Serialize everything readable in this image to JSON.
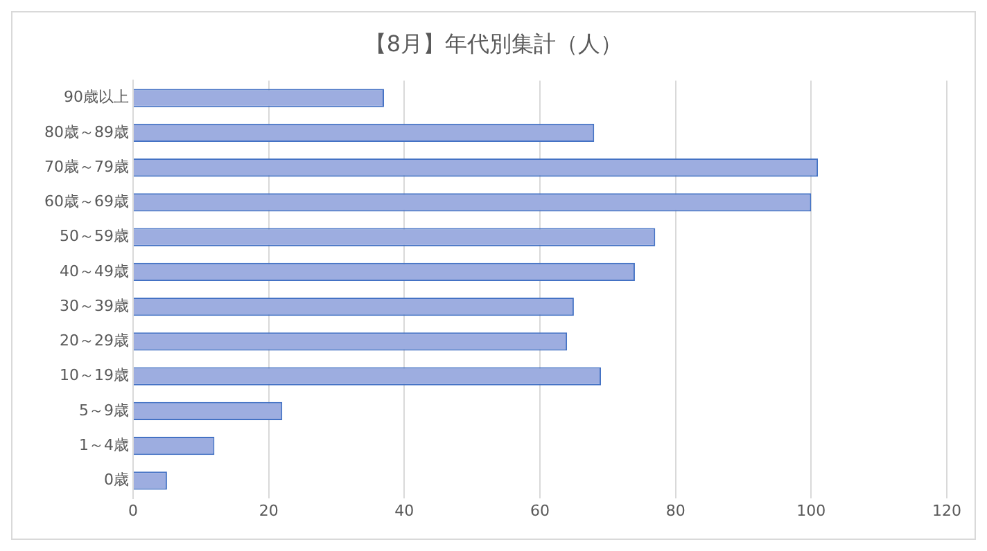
{
  "chart_data": {
    "type": "bar",
    "orientation": "horizontal",
    "title": "【8月】年代別集計（人）",
    "categories": [
      "90歳以上",
      "80歳～89歳",
      "70歳～79歳",
      "60歳～69歳",
      "50～59歳",
      "40～49歳",
      "30～39歳",
      "20～29歳",
      "10～19歳",
      "5～9歳",
      "1～4歳",
      "0歳"
    ],
    "values": [
      37,
      68,
      101,
      100,
      77,
      74,
      65,
      64,
      69,
      22,
      12,
      5
    ],
    "color": "#9dade0",
    "xlim": [
      0,
      120
    ],
    "xticks": [
      0,
      20,
      40,
      60,
      80,
      100,
      120
    ],
    "grid": "x",
    "legend": false
  }
}
